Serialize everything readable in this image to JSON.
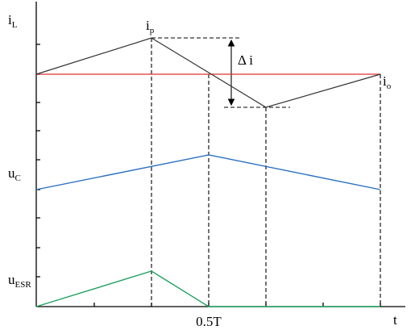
{
  "axes": {
    "x_label": "t",
    "x_tick_label": "0.5T"
  },
  "labels": {
    "inductor_current": {
      "main": "i",
      "sub": "L"
    },
    "peak_current": {
      "main": "i",
      "sub": "p"
    },
    "output_current": {
      "main": "i",
      "sub": "o"
    },
    "ripple": "Δ i",
    "capacitor_voltage": {
      "main": "u",
      "sub": "C"
    },
    "esr_voltage": {
      "main": "u",
      "sub": "ESR"
    }
  }
}
